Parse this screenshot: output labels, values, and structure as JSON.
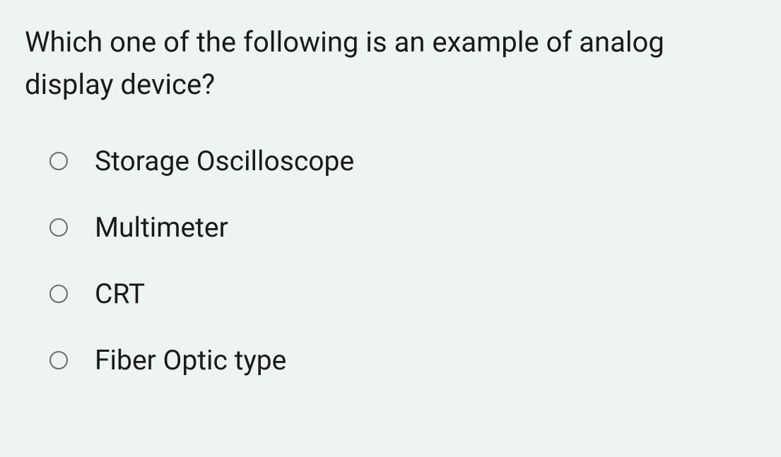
{
  "question": {
    "text": "Which one of the following is an example of  analog display device?",
    "font_size": 40,
    "text_color": "#1a1a1a"
  },
  "options": [
    {
      "label": "Storage Oscilloscope",
      "selected": false
    },
    {
      "label": "Multimeter",
      "selected": false
    },
    {
      "label": "CRT",
      "selected": false
    },
    {
      "label": "Fiber Optic type",
      "selected": false
    }
  ],
  "styling": {
    "background_color": "#eef3f3",
    "radio_border_color": "#6b6b6b",
    "radio_size": 26,
    "option_font_size": 39,
    "option_spacing": 48
  }
}
